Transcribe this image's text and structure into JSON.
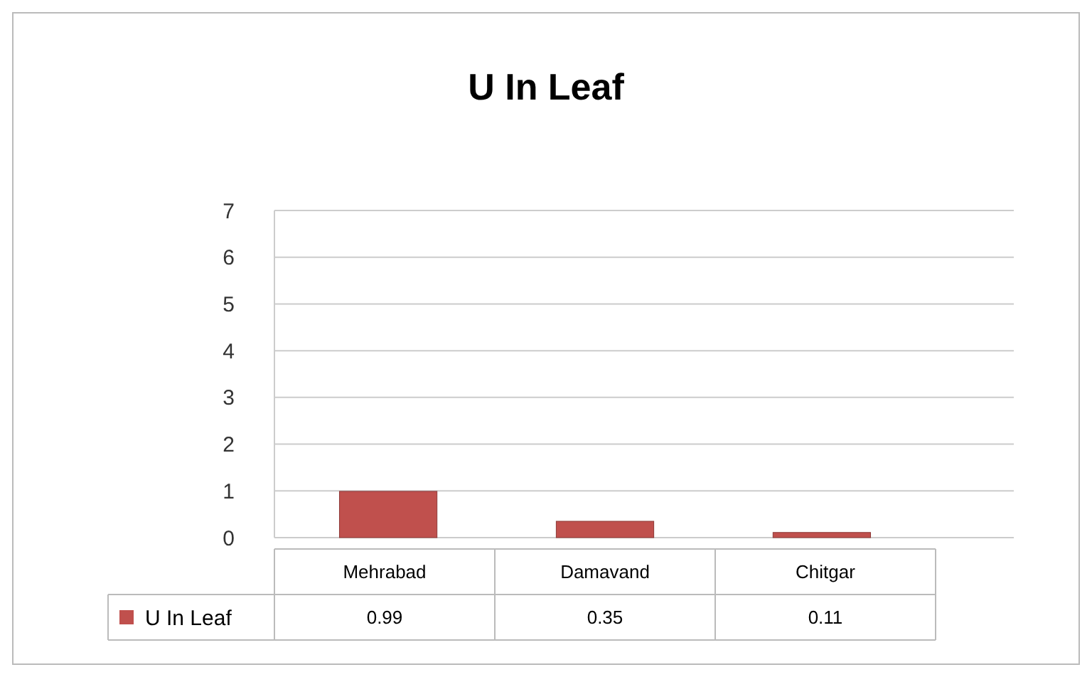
{
  "chart_data": {
    "type": "bar",
    "title": "U In Leaf",
    "categories": [
      "Mehrabad",
      "Damavand",
      "Chitgar"
    ],
    "series": [
      {
        "name": "U In Leaf",
        "color": "#c0504d",
        "values": [
          0.99,
          0.35,
          0.11
        ]
      }
    ],
    "ylim": [
      0,
      7
    ],
    "yticks": [
      0,
      1,
      2,
      3,
      4,
      5,
      6,
      7
    ],
    "grid": "y",
    "data_labels": true,
    "legend": "bottom"
  }
}
